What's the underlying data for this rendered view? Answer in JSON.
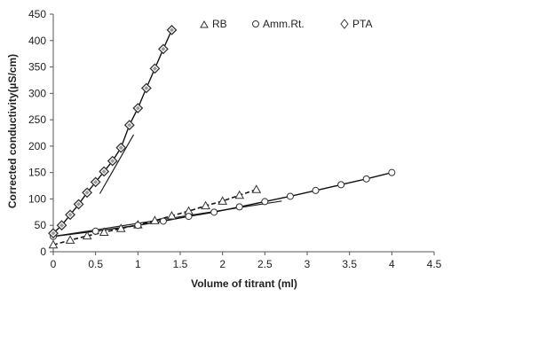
{
  "chart_data": {
    "type": "scatter",
    "title": "",
    "xlabel": "Volume of titrant  (ml)",
    "ylabel": "Corrected conductivity(µS/cm)",
    "xlim": [
      0,
      4.5
    ],
    "ylim": [
      0,
      450
    ],
    "xticks": [
      0,
      0.5,
      1,
      1.5,
      2,
      2.5,
      3,
      3.5,
      4,
      4.5
    ],
    "xtick_labels": [
      "0",
      "0.5",
      "1",
      "1.5",
      "2",
      "2.5",
      "3",
      "3.5",
      "4",
      "4.5"
    ],
    "yticks": [
      0,
      50,
      100,
      150,
      200,
      250,
      300,
      350,
      400,
      450
    ],
    "ytick_labels": [
      "0",
      "50",
      "100",
      "150",
      "200",
      "250",
      "300",
      "350",
      "400",
      "450"
    ],
    "grid": false,
    "legend": "top",
    "series": [
      {
        "name": "RB",
        "marker": "triangle",
        "line": "dashed",
        "x": [
          0,
          0.2,
          0.4,
          0.6,
          0.8,
          1.0,
          1.2,
          1.4,
          1.6,
          1.8,
          2.0,
          2.2,
          2.4
        ],
        "y": [
          13,
          22,
          30,
          37,
          44,
          51,
          59,
          68,
          77,
          87,
          96,
          107,
          118
        ]
      },
      {
        "name": "Amm.Rt.",
        "marker": "circle",
        "line": "solid",
        "x": [
          0,
          0.5,
          1.0,
          1.3,
          1.6,
          1.9,
          2.2,
          2.5,
          2.8,
          3.1,
          3.4,
          3.7,
          4.0
        ],
        "y": [
          29,
          39,
          50,
          58,
          67,
          75,
          85,
          95,
          105,
          116,
          127,
          138,
          150
        ]
      },
      {
        "name": "PTA",
        "marker": "diamond",
        "line": "solid",
        "x": [
          0,
          0.1,
          0.2,
          0.3,
          0.4,
          0.5,
          0.6,
          0.7,
          0.8,
          0.9,
          1.0,
          1.1,
          1.2,
          1.3,
          1.4
        ],
        "y": [
          35,
          50,
          70,
          90,
          112,
          132,
          152,
          172,
          197,
          240,
          272,
          310,
          347,
          384,
          420
        ]
      }
    ],
    "fit_lines": [
      {
        "series": "Amm.Rt.",
        "x": [
          0,
          2.7
        ],
        "y": [
          29,
          96
        ]
      },
      {
        "series": "PTA",
        "x": [
          0.55,
          0.95
        ],
        "y": [
          110,
          222
        ]
      }
    ]
  }
}
